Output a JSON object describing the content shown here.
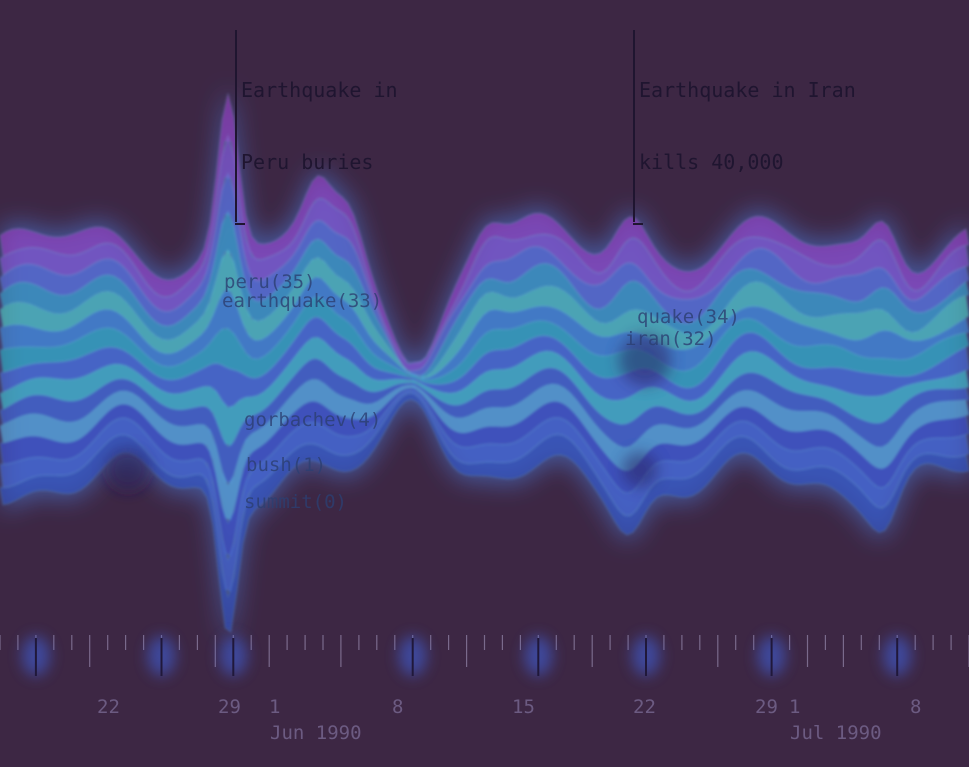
{
  "chart_data": {
    "type": "area",
    "style": "streamgraph",
    "title": "",
    "xlabel": "",
    "ylabel": "",
    "annotations": [
      {
        "lines": [
          "Earthquake in",
          "Peru buries"
        ],
        "date": "1990-05-29"
      },
      {
        "lines": [
          "Earthquake in Iran",
          "kills 40,000"
        ],
        "date": "1990-06-21"
      }
    ],
    "keywords": [
      {
        "label": "peru(35)",
        "date": "1990-05-29"
      },
      {
        "label": "earthquake(33)",
        "date": "1990-05-29"
      },
      {
        "label": "gorbachev(4)",
        "date": "1990-05-30"
      },
      {
        "label": "bush(1)",
        "date": "1990-05-30"
      },
      {
        "label": "summit(0)",
        "date": "1990-05-30"
      },
      {
        "label": "quake(34)",
        "date": "1990-06-21"
      },
      {
        "label": "iran(32)",
        "date": "1990-06-21"
      }
    ],
    "x_ticks": [
      "22",
      "29",
      "1",
      "8",
      "15",
      "22",
      "29",
      "1",
      "8"
    ],
    "month_labels": [
      "Jun 1990",
      "Jul 1990"
    ],
    "x_range": [
      "1990-05-17",
      "1990-07-10"
    ],
    "event_dates": [
      "1990-05-19",
      "1990-05-26",
      "1990-05-30",
      "1990-06-09",
      "1990-06-16",
      "1990-06-22",
      "1990-06-29",
      "1990-07-06"
    ],
    "colors": {
      "background": "#3d2744",
      "stream_teal": "#2fb7c9",
      "stream_blue": "#3f63d6",
      "stream_purple": "#9a3fc9"
    }
  }
}
